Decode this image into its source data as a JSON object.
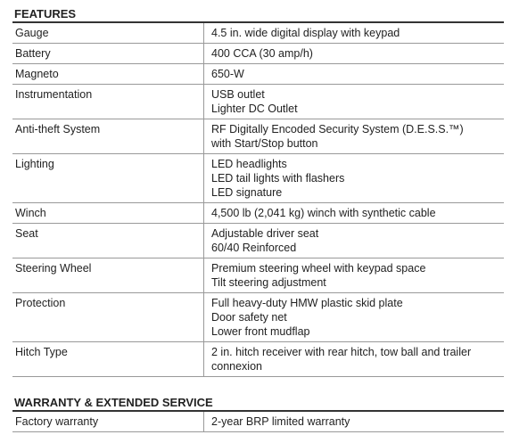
{
  "sections": [
    {
      "title": "FEATURES",
      "rows": [
        {
          "label": "Gauge",
          "lines": [
            "4.5 in. wide digital display with keypad"
          ]
        },
        {
          "label": "Battery",
          "lines": [
            "400 CCA (30 amp/h)"
          ]
        },
        {
          "label": "Magneto",
          "lines": [
            "650-W"
          ]
        },
        {
          "label": "Instrumentation",
          "lines": [
            "USB outlet",
            "Lighter DC Outlet"
          ]
        },
        {
          "label": "Anti-theft System",
          "lines": [
            "RF Digitally Encoded Security System (D.E.S.S.™)",
            "with Start/Stop button"
          ]
        },
        {
          "label": "Lighting",
          "lines": [
            "LED headlights",
            "LED tail lights with flashers",
            "LED signature"
          ]
        },
        {
          "label": "Winch",
          "lines": [
            "4,500 lb (2,041 kg) winch with synthetic cable"
          ]
        },
        {
          "label": "Seat",
          "lines": [
            "Adjustable driver seat",
            "60/40 Reinforced"
          ]
        },
        {
          "label": "Steering Wheel",
          "lines": [
            "Premium steering wheel with keypad space",
            "Tilt steering adjustment"
          ]
        },
        {
          "label": "Protection",
          "lines": [
            "Full heavy-duty HMW plastic skid plate",
            "Door safety net",
            "Lower front mudflap"
          ]
        },
        {
          "label": "Hitch Type",
          "lines": [
            "2 in. hitch receiver with rear hitch, tow ball and trailer",
            "connexion"
          ]
        }
      ]
    },
    {
      "title": "WARRANTY & EXTENDED SERVICE",
      "rows": [
        {
          "label": "Factory  warranty",
          "lines": [
            "2-year BRP limited warranty"
          ]
        }
      ]
    }
  ]
}
